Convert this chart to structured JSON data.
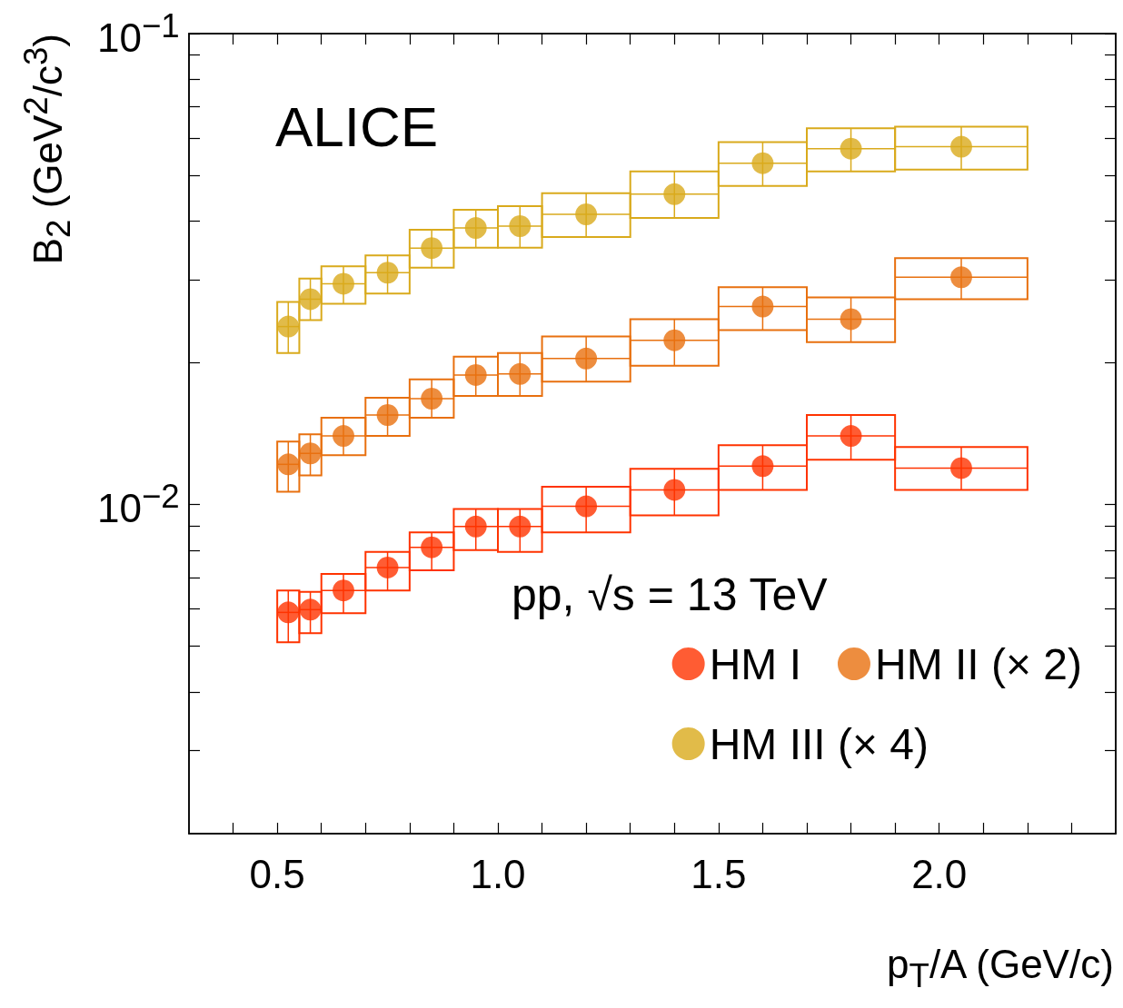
{
  "chart_data": {
    "type": "scatter",
    "xlabel": "p$_{T}$/A (GeV/c)",
    "ylabel": "B$_{2}$ (GeV$^{2}$/c$^{3}$)",
    "annotations": [
      "ALICE",
      "pp, √s = 13 TeV"
    ],
    "x": [
      0.525,
      0.575,
      0.65,
      0.75,
      0.85,
      0.95,
      1.05,
      1.2,
      1.4,
      1.6,
      1.8,
      2.05
    ],
    "series": [
      {
        "name": "HM I",
        "color": "#ff3300",
        "xerrors": [
          0.025,
          0.025,
          0.05,
          0.05,
          0.05,
          0.05,
          0.05,
          0.1,
          0.1,
          0.1,
          0.1,
          0.15
        ],
        "values": [
          0.0059,
          0.00598,
          0.00657,
          0.00735,
          0.00811,
          0.00898,
          0.00898,
          0.00991,
          0.01074,
          0.01206,
          0.01398,
          0.01195
        ],
        "errors": [
          [
            0.0051,
            0.00657
          ],
          [
            0.00533,
            0.00652
          ],
          [
            0.00588,
            0.00712
          ],
          [
            0.00657,
            0.00793
          ],
          [
            0.00725,
            0.00873
          ],
          [
            0.008,
            0.00978
          ],
          [
            0.00793,
            0.00978
          ],
          [
            0.00873,
            0.01091
          ],
          [
            0.00948,
            0.0119
          ],
          [
            0.01074,
            0.01336
          ],
          [
            0.01245,
            0.01549
          ],
          [
            0.01074,
            0.01325
          ]
        ]
      },
      {
        "name": "HM II (× 2)",
        "color": "#e8700f",
        "xerrors": [
          0.025,
          0.025,
          0.05,
          0.05,
          0.05,
          0.05,
          0.05,
          0.1,
          0.1,
          0.1,
          0.1,
          0.15
        ],
        "values": [
          0.01217,
          0.01284,
          0.01398,
          0.01549,
          0.01678,
          0.01884,
          0.01893,
          0.02042,
          0.02233,
          0.02633,
          0.02475,
          0.03038
        ],
        "errors": [
          [
            0.01064,
            0.01361
          ],
          [
            0.01153,
            0.0141
          ],
          [
            0.01273,
            0.01528
          ],
          [
            0.01398,
            0.01686
          ],
          [
            0.01528,
            0.01843
          ],
          [
            0.01701,
            0.02061
          ],
          [
            0.01701,
            0.02098
          ],
          [
            0.01823,
            0.02274
          ],
          [
            0.01971,
            0.02475
          ],
          [
            0.02346,
            0.02893
          ],
          [
            0.02213,
            0.02754
          ],
          [
            0.02729,
            0.03337
          ]
        ]
      },
      {
        "name": "HM III (× 4)",
        "color": "#d9aa1c",
        "xerrors": [
          0.025,
          0.025,
          0.05,
          0.05,
          0.05,
          0.05,
          0.05,
          0.1,
          0.1,
          0.1,
          0.1,
          0.15
        ],
        "values": [
          0.02387,
          0.02729,
          0.02944,
          0.03107,
          0.03504,
          0.03866,
          0.03901,
          0.04133,
          0.0456,
          0.05306,
          0.05699,
          0.0575
        ],
        "errors": [
          [
            0.02098,
            0.02692
          ],
          [
            0.02464,
            0.03017
          ],
          [
            0.02669,
            0.03205
          ],
          [
            0.02804,
            0.03381
          ],
          [
            0.03184,
            0.03831
          ],
          [
            0.0351,
            0.04227
          ],
          [
            0.0351,
            0.04302
          ],
          [
            0.03697,
            0.0458
          ],
          [
            0.04059,
            0.05098
          ],
          [
            0.04748,
            0.05881
          ],
          [
            0.05098,
            0.06295
          ],
          [
            0.05143,
            0.06345
          ]
        ]
      }
    ],
    "xlim": [
      0.3,
      2.4
    ],
    "xticks": [
      {
        "value": 0.4,
        "label": null
      },
      0.5,
      {
        "value": 0.6,
        "label": null
      },
      {
        "value": 0.7,
        "label": null
      },
      {
        "value": 0.8,
        "label": null
      },
      {
        "value": 0.9,
        "label": null
      },
      {
        "value": 1,
        "label": "1.0"
      },
      {
        "value": 1.1,
        "label": null
      },
      {
        "value": 1.2,
        "label": null
      },
      {
        "value": 1.3,
        "label": null
      },
      {
        "value": 1.4,
        "label": null
      },
      1.5,
      {
        "value": 1.6,
        "label": null
      },
      {
        "value": 1.7,
        "label": null
      },
      {
        "value": 1.8,
        "label": null
      },
      {
        "value": 1.9,
        "label": null
      },
      {
        "value": 2,
        "label": "2.0"
      },
      {
        "value": 2.1,
        "label": null
      },
      {
        "value": 2.2,
        "label": null
      },
      {
        "value": 2.3,
        "label": null
      }
    ],
    "ylim": [
      0.002,
      0.1
    ],
    "yticks": [
      {
        "value": 0.003,
        "label": null
      },
      {
        "value": 0.004,
        "label": null
      },
      {
        "value": 0.005,
        "label": null
      },
      {
        "value": 0.006,
        "label": null
      },
      {
        "value": 0.007,
        "label": null
      },
      {
        "value": 0.008,
        "label": null
      },
      {
        "value": 0.009,
        "label": null
      },
      {
        "value": 0.01,
        "label": "10$^{−2}$"
      },
      {
        "value": 0.02,
        "label": null
      },
      {
        "value": 0.03,
        "label": null
      },
      {
        "value": 0.04,
        "label": null
      },
      {
        "value": 0.05,
        "label": null
      },
      {
        "value": 0.06,
        "label": null
      },
      {
        "value": 0.07,
        "label": null
      },
      {
        "value": 0.08,
        "label": null
      },
      {
        "value": 0.09,
        "label": null
      },
      {
        "value": 0.1,
        "label": "10$^{−1}$"
      }
    ],
    "log": true,
    "grid": false,
    "legend": "bottom right",
    "marker": "circle"
  }
}
